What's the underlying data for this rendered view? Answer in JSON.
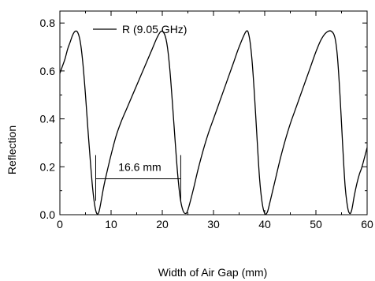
{
  "chart_data": {
    "type": "line",
    "xlabel": "Width of Air Gap (mm)",
    "ylabel": "Reflection",
    "xlim": [
      0,
      60
    ],
    "ylim": [
      0,
      0.85
    ],
    "x_ticks": [
      0,
      10,
      20,
      30,
      40,
      50,
      60
    ],
    "y_ticks": [
      0.0,
      0.2,
      0.4,
      0.6,
      0.8
    ],
    "x_tick_labels": [
      "0",
      "10",
      "20",
      "30",
      "40",
      "50",
      "60"
    ],
    "y_tick_labels": [
      "0.0",
      "0.2",
      "0.4",
      "0.6",
      "0.8"
    ],
    "grid": false,
    "legend_position": "top-left",
    "series": [
      {
        "name": "R (9.05 GHz)",
        "color": "#000000",
        "x": [
          0,
          0.5,
          1,
          1.5,
          2,
          2.5,
          3,
          3.5,
          4,
          4.5,
          5,
          5.5,
          6,
          6.4,
          6.8,
          7.2,
          7.6,
          8.0,
          8.5,
          9,
          10,
          11,
          12,
          13,
          14,
          15,
          16,
          17,
          18,
          19,
          19.8,
          20.5,
          21.0,
          21.5,
          22.0,
          22.5,
          23.0,
          23.5,
          24.0,
          24.5,
          25,
          26,
          27,
          28,
          29,
          30,
          31,
          32,
          33,
          34,
          35,
          36.4,
          37.0,
          37.5,
          38.0,
          38.5,
          39.0,
          39.5,
          40.0,
          40.5,
          41,
          42,
          43,
          44,
          45,
          46,
          47,
          48,
          49,
          50,
          51,
          52,
          53.0,
          53.7,
          54.2,
          54.7,
          55.2,
          55.7,
          56.2,
          56.6,
          57.0,
          57.5,
          58,
          58.5,
          59,
          60
        ],
        "y": [
          0.59,
          0.62,
          0.65,
          0.69,
          0.72,
          0.75,
          0.766,
          0.76,
          0.72,
          0.63,
          0.5,
          0.35,
          0.21,
          0.11,
          0.04,
          0.005,
          0.01,
          0.05,
          0.11,
          0.16,
          0.25,
          0.33,
          0.39,
          0.44,
          0.49,
          0.54,
          0.59,
          0.64,
          0.69,
          0.74,
          0.766,
          0.75,
          0.7,
          0.6,
          0.46,
          0.31,
          0.17,
          0.07,
          0.02,
          0.005,
          0.02,
          0.1,
          0.19,
          0.27,
          0.34,
          0.4,
          0.46,
          0.52,
          0.58,
          0.64,
          0.7,
          0.766,
          0.74,
          0.65,
          0.5,
          0.32,
          0.15,
          0.05,
          0.005,
          0.01,
          0.05,
          0.14,
          0.23,
          0.31,
          0.38,
          0.44,
          0.5,
          0.56,
          0.62,
          0.68,
          0.73,
          0.76,
          0.766,
          0.74,
          0.66,
          0.5,
          0.3,
          0.12,
          0.03,
          0.005,
          0.02,
          0.08,
          0.13,
          0.17,
          0.2,
          0.28
        ]
      }
    ],
    "annotations": [
      {
        "text": "16.6 mm",
        "x_start": 7.0,
        "x_end": 23.6,
        "y": 0.15
      }
    ]
  }
}
